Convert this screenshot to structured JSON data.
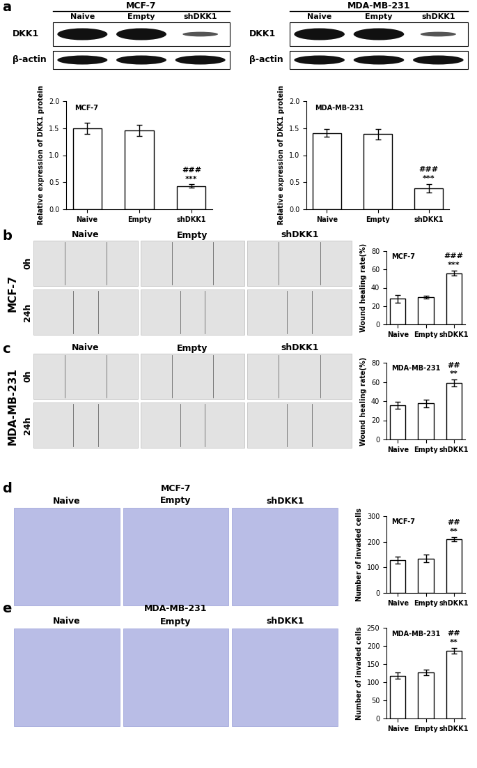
{
  "blots": {
    "letter": "a",
    "groups": [
      {
        "title": "MCF-7",
        "columns": [
          "Naive",
          "Empty",
          "shDKK1"
        ],
        "rows": [
          "DKK1",
          "β-actin"
        ]
      },
      {
        "title": "MDA-MB-231",
        "columns": [
          "Naive",
          "Empty",
          "shDKK1"
        ],
        "rows": [
          "DKK1",
          "β-actin"
        ]
      }
    ]
  },
  "wound_images": [
    {
      "letter": "b",
      "cell_line": "MCF-7",
      "columns": [
        "Naive",
        "Empty",
        "shDKK1"
      ],
      "rows": [
        "0h",
        "24h"
      ]
    },
    {
      "letter": "c",
      "cell_line": "MDA-MB-231",
      "columns": [
        "Naive",
        "Empty",
        "shDKK1"
      ],
      "rows": [
        "0h",
        "24h"
      ]
    }
  ],
  "invasion_images": [
    {
      "letter": "d",
      "title": "MCF-7",
      "columns": [
        "Naive",
        "Empty",
        "shDKK1"
      ]
    },
    {
      "letter": "e",
      "title": "MDA-MB-231",
      "columns": [
        "Naive",
        "Empty",
        "shDKK1"
      ]
    }
  ],
  "chart_data": [
    {
      "type": "bar",
      "title": "MCF-7",
      "ylabel": "Relative expression of DKK1 protein",
      "categories": [
        "Naive",
        "Empty",
        "shDKK1"
      ],
      "values": [
        1.5,
        1.46,
        0.43
      ],
      "errors": [
        0.1,
        0.1,
        0.03
      ],
      "color": "#ffffff",
      "ylim": [
        0,
        2.0
      ],
      "yticks": [
        {
          "value": 0,
          "label": "0.0"
        },
        {
          "value": 0.5,
          "label": "0.5"
        },
        {
          "value": 1.0,
          "label": "1.0"
        },
        {
          "value": 1.5,
          "label": "1.5"
        },
        {
          "value": 2.0,
          "label": "2.0"
        }
      ],
      "annotations": [
        {
          "category": "shDKK1",
          "text": "###"
        },
        {
          "category": "shDKK1",
          "text": "***"
        }
      ]
    },
    {
      "type": "bar",
      "title": "MDA-MB-231",
      "ylabel": "Relative expression of DKK1 protein",
      "categories": [
        "Naive",
        "Empty",
        "shDKK1"
      ],
      "values": [
        1.41,
        1.39,
        0.39
      ],
      "errors": [
        0.07,
        0.1,
        0.08
      ],
      "color": "#ffffff",
      "ylim": [
        0,
        2.0
      ],
      "yticks": [
        {
          "value": 0,
          "label": "0.0"
        },
        {
          "value": 0.5,
          "label": "0.5"
        },
        {
          "value": 1.0,
          "label": "1.0"
        },
        {
          "value": 1.5,
          "label": "1.5"
        },
        {
          "value": 2.0,
          "label": "2.0"
        }
      ],
      "annotations": [
        {
          "category": "shDKK1",
          "text": "###"
        },
        {
          "category": "shDKK1",
          "text": "***"
        }
      ]
    },
    {
      "type": "bar",
      "title": "MCF-7",
      "ylabel": "Wound healing rate(%)",
      "categories": [
        "Naive",
        "Empty",
        "shDKK1"
      ],
      "values": [
        28,
        30,
        56
      ],
      "errors": [
        4,
        1.5,
        3
      ],
      "color": "#ffffff",
      "ylim": [
        0,
        80
      ],
      "yticks": [
        0,
        20,
        40,
        60,
        80
      ],
      "annotations": [
        {
          "category": "shDKK1",
          "text": "###"
        },
        {
          "category": "shDKK1",
          "text": "***"
        }
      ]
    },
    {
      "type": "bar",
      "title": "MDA-MB-231",
      "ylabel": "Wound healing rate(%)",
      "categories": [
        "Naive",
        "Empty",
        "shDKK1"
      ],
      "values": [
        35.5,
        37.5,
        59
      ],
      "errors": [
        3.5,
        4,
        3.5
      ],
      "color": "#ffffff",
      "ylim": [
        0,
        80
      ],
      "yticks": [
        0,
        20,
        40,
        60,
        80
      ],
      "annotations": [
        {
          "category": "shDKK1",
          "text": "##"
        },
        {
          "category": "shDKK1",
          "text": "**"
        }
      ]
    },
    {
      "type": "bar",
      "title": "MCF-7",
      "ylabel": "Number of invaded cells",
      "categories": [
        "Naive",
        "Empty",
        "shDKK1"
      ],
      "values": [
        128,
        135,
        211
      ],
      "errors": [
        13,
        15,
        8
      ],
      "color": "#ffffff",
      "ylim": [
        0,
        300
      ],
      "yticks": [
        0,
        100,
        200,
        300
      ],
      "annotations": [
        {
          "category": "shDKK1",
          "text": "##"
        },
        {
          "category": "shDKK1",
          "text": "**"
        }
      ]
    },
    {
      "type": "bar",
      "title": "MDA-MB-231",
      "ylabel": "Number of invaded cells",
      "categories": [
        "Naive",
        "Empty",
        "shDKK1"
      ],
      "values": [
        118,
        127,
        187
      ],
      "errors": [
        8,
        7,
        8
      ],
      "color": "#ffffff",
      "ylim": [
        0,
        250
      ],
      "yticks": [
        0,
        50,
        100,
        150,
        200,
        250
      ],
      "annotations": [
        {
          "category": "shDKK1",
          "text": "##"
        },
        {
          "category": "shDKK1",
          "text": "**"
        }
      ]
    }
  ]
}
